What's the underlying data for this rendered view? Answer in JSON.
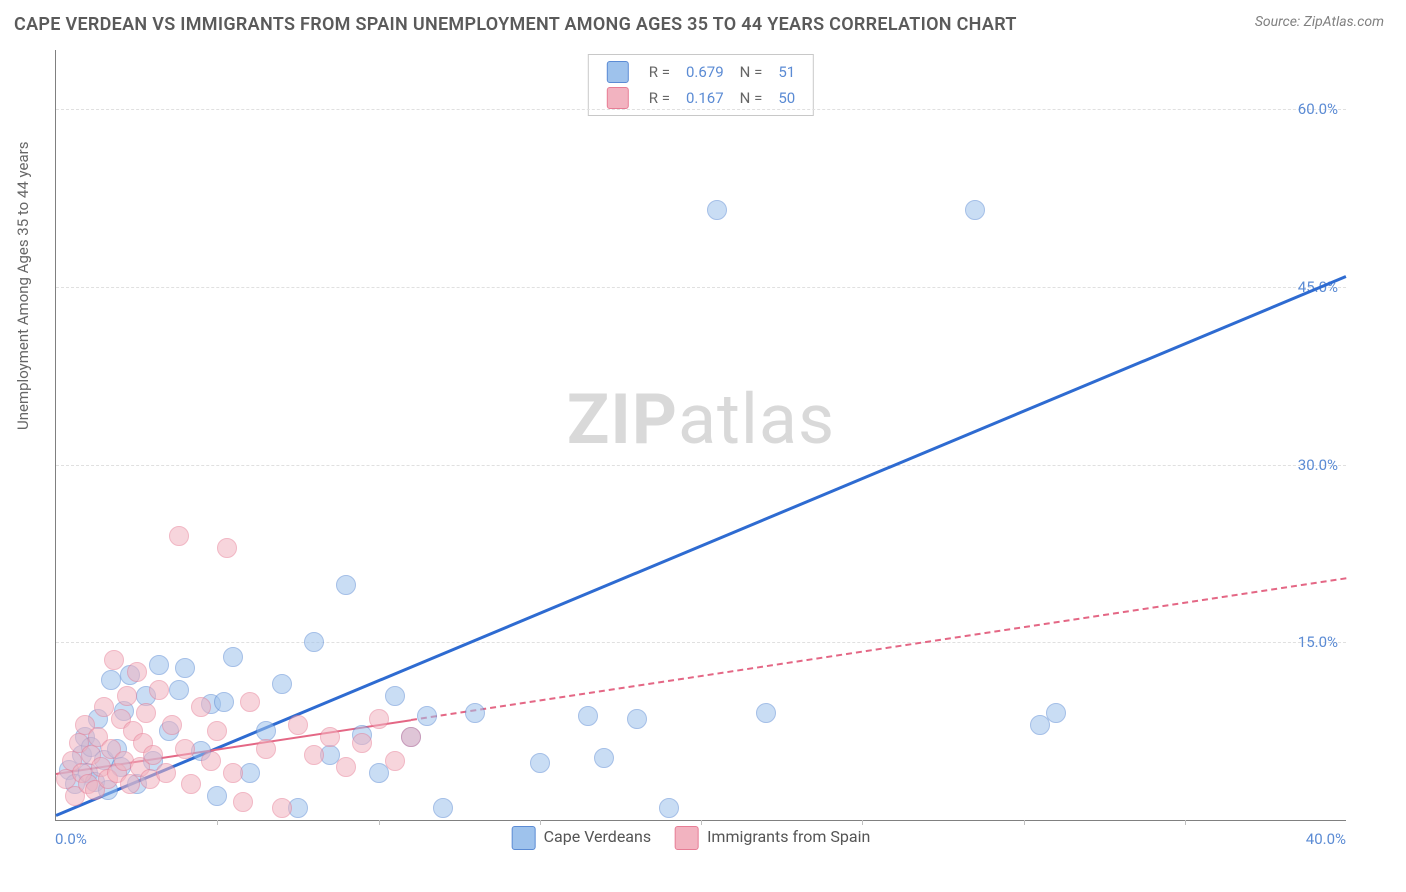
{
  "title": "CAPE VERDEAN VS IMMIGRANTS FROM SPAIN UNEMPLOYMENT AMONG AGES 35 TO 44 YEARS CORRELATION CHART",
  "source": "Source: ZipAtlas.com",
  "ylabel": "Unemployment Among Ages 35 to 44 years",
  "watermark_bold": "ZIP",
  "watermark_rest": "atlas",
  "chart": {
    "type": "scatter",
    "xlim": [
      0,
      40
    ],
    "ylim": [
      0,
      65
    ],
    "yticks": [
      15,
      30,
      45,
      60
    ],
    "ytick_labels": [
      "15.0%",
      "30.0%",
      "45.0%",
      "60.0%"
    ],
    "xtick_left": "0.0%",
    "xtick_right": "40.0%",
    "x_minor_step": 5,
    "background_color": "#ffffff",
    "grid_color": "#e0e0e0",
    "axis_color": "#808080",
    "tick_color": "#5b8bd4",
    "point_radius": 9,
    "point_opacity": 0.55,
    "series": [
      {
        "name": "Cape Verdeans",
        "color_fill": "#9ec2ec",
        "color_stroke": "#5b8bd4",
        "R": "0.679",
        "N": "51",
        "regression": {
          "x1": 0,
          "y1": 0.5,
          "x2": 40,
          "y2": 46,
          "color": "#2e6bd1",
          "width": 3,
          "dashed": false,
          "solid_until_x": 40
        },
        "points": [
          [
            0.4,
            4.2
          ],
          [
            0.6,
            3.0
          ],
          [
            0.8,
            5.5
          ],
          [
            0.9,
            7.0
          ],
          [
            1.0,
            4.0
          ],
          [
            1.1,
            6.2
          ],
          [
            1.2,
            3.2
          ],
          [
            1.3,
            8.5
          ],
          [
            1.5,
            5.1
          ],
          [
            1.6,
            2.5
          ],
          [
            1.7,
            11.8
          ],
          [
            1.9,
            6.0
          ],
          [
            2.0,
            4.5
          ],
          [
            2.1,
            9.2
          ],
          [
            2.3,
            12.2
          ],
          [
            2.5,
            3.0
          ],
          [
            2.8,
            10.5
          ],
          [
            3.0,
            5.0
          ],
          [
            3.2,
            13.1
          ],
          [
            3.5,
            7.5
          ],
          [
            3.8,
            11.0
          ],
          [
            4.0,
            12.8
          ],
          [
            4.5,
            5.8
          ],
          [
            4.8,
            9.8
          ],
          [
            5.0,
            2.0
          ],
          [
            5.2,
            10.0
          ],
          [
            5.5,
            13.8
          ],
          [
            6.0,
            4.0
          ],
          [
            6.5,
            7.5
          ],
          [
            7.0,
            11.5
          ],
          [
            7.5,
            1.0
          ],
          [
            8.0,
            15.0
          ],
          [
            8.5,
            5.5
          ],
          [
            9.0,
            19.8
          ],
          [
            9.5,
            7.2
          ],
          [
            10.0,
            4.0
          ],
          [
            10.5,
            10.5
          ],
          [
            11.0,
            7.0
          ],
          [
            11.5,
            8.8
          ],
          [
            12.0,
            1.0
          ],
          [
            13.0,
            9.0
          ],
          [
            15.0,
            4.8
          ],
          [
            16.5,
            8.8
          ],
          [
            17.0,
            5.2
          ],
          [
            18.0,
            8.5
          ],
          [
            19.0,
            1.0
          ],
          [
            20.5,
            51.5
          ],
          [
            22.0,
            9.0
          ],
          [
            28.5,
            51.5
          ],
          [
            30.5,
            8.0
          ],
          [
            31.0,
            9.0
          ]
        ]
      },
      {
        "name": "Immigrants from Spain",
        "color_fill": "#f2b3c0",
        "color_stroke": "#e77d95",
        "R": "0.167",
        "N": "50",
        "regression": {
          "x1": 0,
          "y1": 4.0,
          "x2": 40,
          "y2": 20.5,
          "color": "#e46785",
          "width": 2,
          "dashed": true,
          "solid_until_x": 11
        },
        "points": [
          [
            0.3,
            3.5
          ],
          [
            0.5,
            5.0
          ],
          [
            0.6,
            2.0
          ],
          [
            0.7,
            6.5
          ],
          [
            0.8,
            4.0
          ],
          [
            0.9,
            8.0
          ],
          [
            1.0,
            3.0
          ],
          [
            1.1,
            5.5
          ],
          [
            1.2,
            2.5
          ],
          [
            1.3,
            7.0
          ],
          [
            1.4,
            4.5
          ],
          [
            1.5,
            9.5
          ],
          [
            1.6,
            3.5
          ],
          [
            1.7,
            6.0
          ],
          [
            1.8,
            13.5
          ],
          [
            1.9,
            4.0
          ],
          [
            2.0,
            8.5
          ],
          [
            2.1,
            5.0
          ],
          [
            2.2,
            10.5
          ],
          [
            2.3,
            3.0
          ],
          [
            2.4,
            7.5
          ],
          [
            2.5,
            12.5
          ],
          [
            2.6,
            4.5
          ],
          [
            2.7,
            6.5
          ],
          [
            2.8,
            9.0
          ],
          [
            2.9,
            3.5
          ],
          [
            3.0,
            5.5
          ],
          [
            3.2,
            11.0
          ],
          [
            3.4,
            4.0
          ],
          [
            3.6,
            8.0
          ],
          [
            3.8,
            24.0
          ],
          [
            4.0,
            6.0
          ],
          [
            4.2,
            3.0
          ],
          [
            4.5,
            9.5
          ],
          [
            4.8,
            5.0
          ],
          [
            5.0,
            7.5
          ],
          [
            5.3,
            23.0
          ],
          [
            5.5,
            4.0
          ],
          [
            5.8,
            1.5
          ],
          [
            6.0,
            10.0
          ],
          [
            6.5,
            6.0
          ],
          [
            7.0,
            1.0
          ],
          [
            7.5,
            8.0
          ],
          [
            8.0,
            5.5
          ],
          [
            8.5,
            7.0
          ],
          [
            9.0,
            4.5
          ],
          [
            9.5,
            6.5
          ],
          [
            10.0,
            8.5
          ],
          [
            10.5,
            5.0
          ],
          [
            11.0,
            7.0
          ]
        ]
      }
    ]
  },
  "legend_top": {
    "r_label": "R =",
    "n_label": "N =",
    "value_color": "#5b8bd4",
    "label_color": "#666666"
  },
  "legend_bottom": {
    "items": [
      {
        "label": "Cape Verdeans",
        "fill": "#9ec2ec",
        "stroke": "#5b8bd4"
      },
      {
        "label": "Immigrants from Spain",
        "fill": "#f2b3c0",
        "stroke": "#e77d95"
      }
    ]
  }
}
